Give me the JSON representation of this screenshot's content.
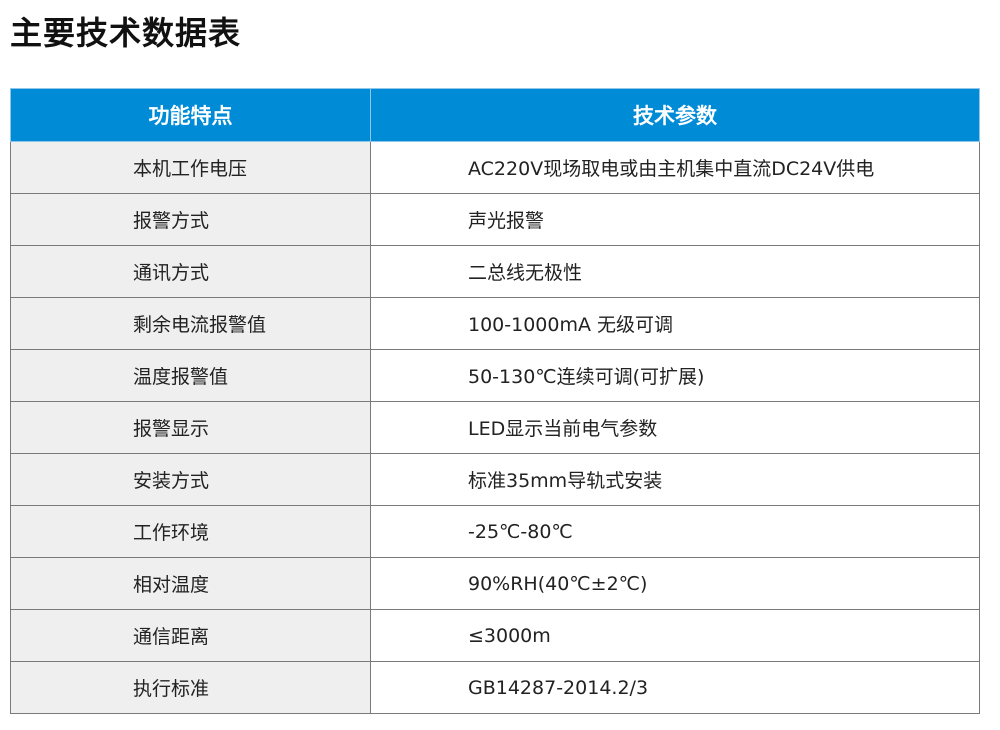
{
  "title": "主要技术数据表",
  "headers": [
    "功能特点",
    "技术参数"
  ],
  "rows": [
    [
      "本机工作电压",
      "AC220V现场取电或由主机集中直流DC24V供电"
    ],
    [
      "报警方式",
      "声光报警"
    ],
    [
      "通讯方式",
      "二总线无极性"
    ],
    [
      "剩余电流报警值",
      "100-1000mA  无级可调"
    ],
    [
      "温度报警值",
      "50-130℃连续可调(可扩展)"
    ],
    [
      "报警显示",
      "LED显示当前电气参数"
    ],
    [
      "安装方式",
      "标准35mm导轨式安装"
    ],
    [
      "工作环境",
      "-25℃-80℃"
    ],
    [
      "相对温度",
      "90%RH(40℃±2℃)"
    ],
    [
      "通信距离",
      "≤3000m"
    ],
    [
      "执行标准",
      "GB14287-2014.2/3"
    ]
  ],
  "colors": {
    "header_bg": "#008bd6",
    "label_bg": "#efefef"
  }
}
